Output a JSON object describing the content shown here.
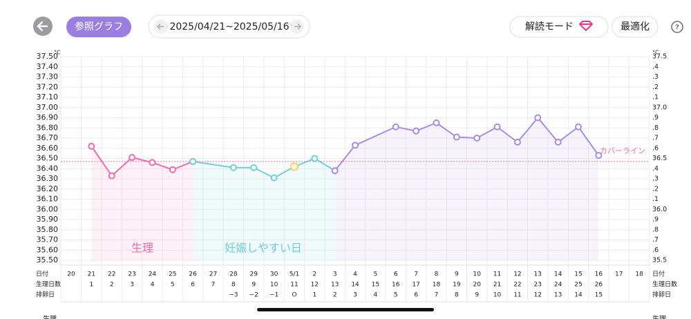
{
  "header": {
    "reference_graph": "参照グラフ",
    "date_range": "2025/04/21~2025/05/16",
    "decode_mode": "解読モード",
    "optimize": "最適化",
    "help": "?"
  },
  "chart_data": {
    "type": "line",
    "y_unit": "°C",
    "categories": [
      "20",
      "21",
      "22",
      "23",
      "24",
      "25",
      "26",
      "27",
      "28",
      "29",
      "30",
      "5/1",
      "2",
      "3",
      "4",
      "5",
      "6",
      "7",
      "8",
      "9",
      "10",
      "11",
      "12",
      "13",
      "14",
      "15",
      "16",
      "17",
      "18"
    ],
    "series": [
      {
        "name": "生理",
        "color": "#f06ba8",
        "x": [
          "21",
          "22",
          "23",
          "24",
          "25",
          "26"
        ],
        "values": [
          36.62,
          36.33,
          36.51,
          36.46,
          36.39,
          36.47
        ]
      },
      {
        "name": "妊娠しやすい日",
        "color": "#6ecfd6",
        "x": [
          "26",
          "28",
          "29",
          "30",
          "5/1",
          "2",
          "3"
        ],
        "values": [
          36.47,
          36.41,
          36.41,
          36.31,
          36.42,
          36.5,
          36.38
        ]
      },
      {
        "color": "#a98be6",
        "x": [
          "3",
          "4",
          "6",
          "7",
          "8",
          "9",
          "10",
          "11",
          "12",
          "13",
          "14",
          "15",
          "16"
        ],
        "values": [
          36.38,
          36.63,
          36.81,
          36.77,
          36.85,
          36.71,
          36.7,
          36.81,
          36.66,
          36.9,
          36.66,
          36.81,
          36.53
        ]
      }
    ],
    "ovulation_day": "5/1",
    "ovulation_color": "#f9c74f",
    "cover_line": {
      "label": "カバーライン",
      "value": 36.47,
      "color": "#f06ba8"
    },
    "ylim": [
      35.5,
      37.5
    ],
    "yticks": [
      {
        "value": 37.5,
        "label": "37.50"
      },
      {
        "value": 37.4,
        "label": "37.40"
      },
      {
        "value": 37.3,
        "label": "37.30"
      },
      {
        "value": 37.2,
        "label": "37.20"
      },
      {
        "value": 37.1,
        "label": "37.10"
      },
      {
        "value": 37,
        "label": "37.00"
      },
      {
        "value": 36.9,
        "label": "36.90"
      },
      {
        "value": 36.8,
        "label": "36.80"
      },
      {
        "value": 36.7,
        "label": "36.70"
      },
      {
        "value": 36.6,
        "label": "36.60"
      },
      {
        "value": 36.5,
        "label": "36.50"
      },
      {
        "value": 36.4,
        "label": "36.40"
      },
      {
        "value": 36.3,
        "label": "36.30"
      },
      {
        "value": 36.2,
        "label": "36.20"
      },
      {
        "value": 36.1,
        "label": "36.10"
      },
      {
        "value": 36,
        "label": "36.00"
      },
      {
        "value": 35.9,
        "label": "35.90"
      },
      {
        "value": 35.8,
        "label": "35.80"
      },
      {
        "value": 35.7,
        "label": "35.70"
      },
      {
        "value": 35.6,
        "label": "35.60"
      },
      {
        "value": 35.5,
        "label": "35.50"
      }
    ],
    "y2lim": [
      35.5,
      37.5
    ],
    "y2ticks": [
      37.5,
      {
        "value": 37.4,
        "label": ".4"
      },
      {
        "value": 37.3,
        "label": ".3"
      },
      {
        "value": 37.2,
        "label": ".2"
      },
      {
        "value": 37.1,
        "label": ".1"
      },
      {
        "value": 37,
        "label": "37.0"
      },
      {
        "value": 36.9,
        "label": ".9"
      },
      {
        "value": 36.8,
        "label": ".8"
      },
      {
        "value": 36.7,
        "label": ".7"
      },
      {
        "value": 36.6,
        "label": ".6"
      },
      36.5,
      {
        "value": 36.4,
        "label": ".4"
      },
      {
        "value": 36.3,
        "label": ".3"
      },
      {
        "value": 36.2,
        "label": ".2"
      },
      {
        "value": 36.1,
        "label": ".1"
      },
      {
        "value": 36,
        "label": "36.0"
      },
      {
        "value": 35.9,
        "label": ".9"
      },
      {
        "value": 35.8,
        "label": ".8"
      },
      {
        "value": 35.7,
        "label": ".7"
      },
      {
        "value": 35.6,
        "label": ".6"
      },
      35.5
    ],
    "grid": true,
    "row_labels": [
      "日付",
      "生理日数",
      "排卵日"
    ],
    "cycle_days": [
      null,
      1,
      2,
      3,
      4,
      5,
      6,
      7,
      8,
      9,
      10,
      11,
      12,
      13,
      14,
      15,
      16,
      17,
      18,
      19,
      20,
      21,
      22,
      23,
      24,
      25,
      26,
      null,
      null
    ],
    "ovulation_days": [
      null,
      null,
      null,
      null,
      null,
      null,
      null,
      null,
      "−3",
      "−2",
      "−1",
      "O",
      "1",
      "2",
      "3",
      "4",
      "5",
      "6",
      "7",
      "8",
      "9",
      "10",
      "11",
      "12",
      "13",
      "14",
      "15",
      null,
      null
    ],
    "section_label": "生理"
  }
}
